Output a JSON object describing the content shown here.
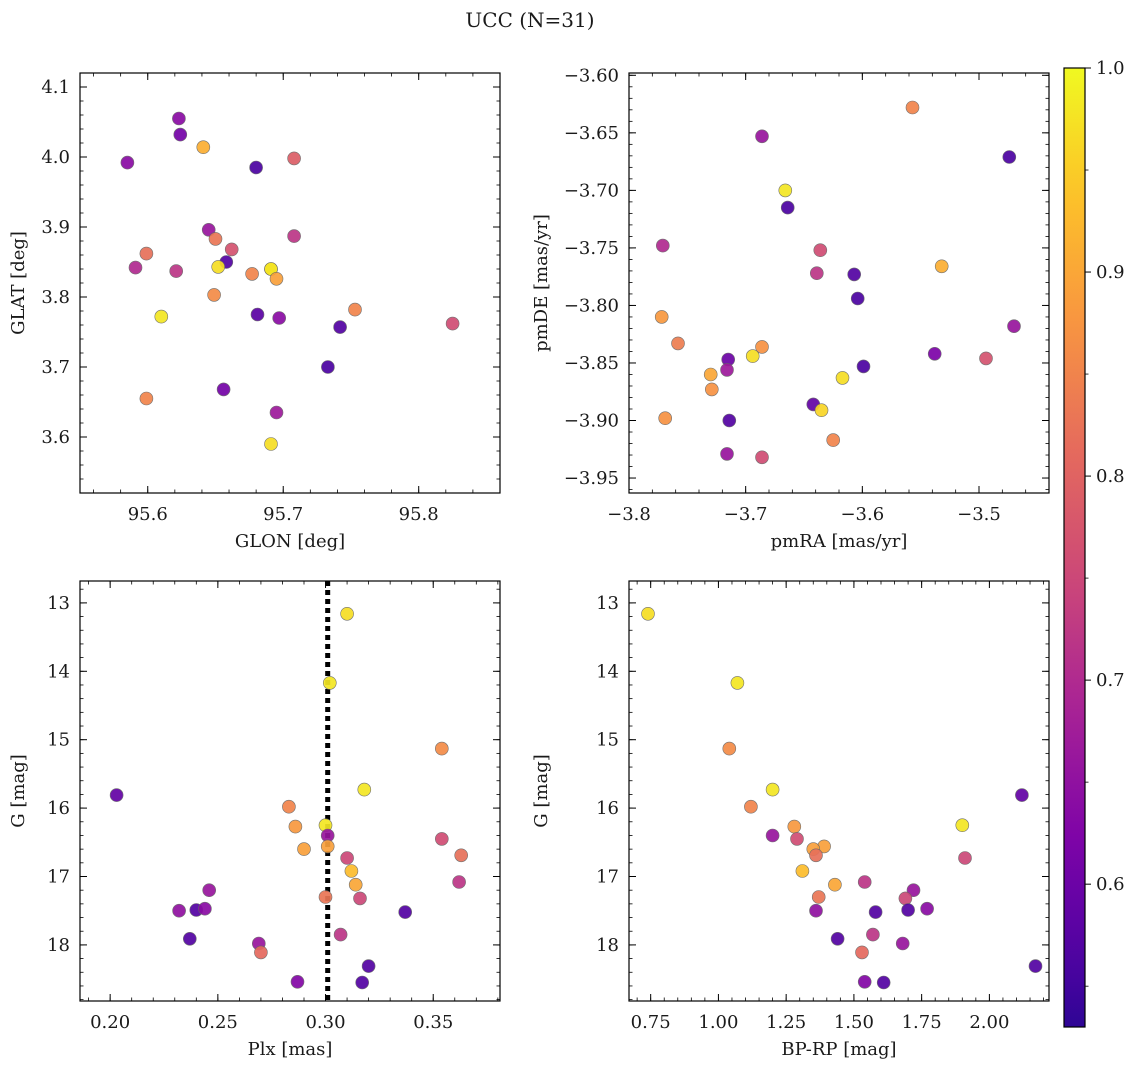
{
  "figure": {
    "title": "UCC (N=31)",
    "colormap": "plasma",
    "colorbar": {
      "min": 0.53,
      "max": 1.0,
      "ticks": [
        0.6,
        0.7,
        0.8,
        0.9,
        1.0
      ],
      "tick_labels": [
        "0.6",
        "0.7",
        "0.8",
        "0.9",
        "1.0"
      ]
    },
    "marker_edge_color": "#666666",
    "reference_line": {
      "panel": 2,
      "axis": "x",
      "value": 0.301,
      "style": "dotted",
      "color": "#000000"
    }
  },
  "chart_data": [
    {
      "type": "scatter",
      "title": "",
      "xlabel": "GLON [deg]",
      "ylabel": "GLAT [deg]",
      "xlim": [
        95.55,
        95.86
      ],
      "ylim": [
        3.52,
        4.12
      ],
      "y_inverted": false,
      "xticks": [
        95.6,
        95.7,
        95.8
      ],
      "xtick_labels": [
        "95.6",
        "95.7",
        "95.8"
      ],
      "yticks": [
        3.6,
        3.7,
        3.8,
        3.9,
        4.0,
        4.1
      ],
      "ytick_labels": [
        "3.6",
        "3.7",
        "3.8",
        "3.9",
        "4.0",
        "4.1"
      ],
      "x": [
        95.623,
        95.624,
        95.585,
        95.641,
        95.68,
        95.708,
        95.645,
        95.65,
        95.708,
        95.662,
        95.599,
        95.591,
        95.621,
        95.658,
        95.652,
        95.677,
        95.691,
        95.691,
        95.695,
        95.649,
        95.61,
        95.753,
        95.681,
        95.697,
        95.742,
        95.825,
        95.733,
        95.599,
        95.656,
        95.695,
        95.691
      ],
      "y": [
        4.055,
        4.032,
        3.992,
        4.014,
        3.985,
        3.998,
        3.896,
        3.883,
        3.887,
        3.868,
        3.862,
        3.842,
        3.837,
        3.85,
        3.843,
        3.833,
        3.84,
        3.84,
        3.826,
        3.803,
        3.772,
        3.782,
        3.775,
        3.77,
        3.757,
        3.762,
        3.7,
        3.655,
        3.668,
        3.635,
        3.59
      ],
      "c": [
        0.64,
        0.61,
        0.64,
        0.91,
        0.56,
        0.79,
        0.66,
        0.83,
        0.72,
        0.77,
        0.82,
        0.7,
        0.72,
        0.57,
        0.97,
        0.85,
        0.93,
        0.98,
        0.89,
        0.86,
        0.98,
        0.85,
        0.58,
        0.64,
        0.57,
        0.76,
        0.56,
        0.85,
        0.61,
        0.67,
        0.97
      ]
    },
    {
      "type": "scatter",
      "title": "",
      "xlabel": "pmRA [mas/yr]",
      "ylabel": "pmDE [mas/yr]",
      "xlim": [
        -3.8,
        -3.44
      ],
      "ylim": [
        -3.963,
        -3.598
      ],
      "y_inverted": false,
      "xticks": [
        -3.8,
        -3.7,
        -3.6,
        -3.5
      ],
      "xtick_labels": [
        "−3.8",
        "−3.7",
        "−3.6",
        "−3.5"
      ],
      "yticks": [
        -3.95,
        -3.9,
        -3.85,
        -3.8,
        -3.75,
        -3.7,
        -3.65,
        -3.6
      ],
      "ytick_labels": [
        "−3.95",
        "−3.90",
        "−3.85",
        "−3.80",
        "−3.75",
        "−3.70",
        "−3.65",
        "−3.60"
      ],
      "x": [
        -3.557,
        -3.686,
        -3.474,
        -3.666,
        -3.664,
        -3.771,
        -3.636,
        -3.639,
        -3.532,
        -3.607,
        -3.604,
        -3.47,
        -3.772,
        -3.758,
        -3.686,
        -3.715,
        -3.694,
        -3.538,
        -3.494,
        -3.599,
        -3.716,
        -3.73,
        -3.617,
        -3.729,
        -3.642,
        -3.635,
        -3.769,
        -3.714,
        -3.625,
        -3.716,
        -3.686
      ],
      "y": [
        -3.628,
        -3.653,
        -3.671,
        -3.7,
        -3.715,
        -3.748,
        -3.752,
        -3.772,
        -3.766,
        -3.773,
        -3.794,
        -3.818,
        -3.81,
        -3.833,
        -3.836,
        -3.847,
        -3.844,
        -3.842,
        -3.846,
        -3.853,
        -3.856,
        -3.86,
        -3.863,
        -3.873,
        -3.886,
        -3.891,
        -3.898,
        -3.9,
        -3.917,
        -3.929,
        -3.932
      ],
      "c": [
        0.85,
        0.66,
        0.56,
        0.98,
        0.56,
        0.7,
        0.76,
        0.72,
        0.91,
        0.57,
        0.56,
        0.66,
        0.88,
        0.84,
        0.87,
        0.6,
        0.97,
        0.62,
        0.77,
        0.56,
        0.67,
        0.9,
        0.97,
        0.87,
        0.59,
        0.96,
        0.87,
        0.57,
        0.85,
        0.66,
        0.76
      ]
    },
    {
      "type": "scatter",
      "title": "",
      "xlabel": "Plx [mas]",
      "ylabel": "G [mag]",
      "xlim": [
        0.186,
        0.381
      ],
      "ylim": [
        12.68,
        18.82
      ],
      "y_inverted": true,
      "xticks": [
        0.2,
        0.25,
        0.3,
        0.35
      ],
      "xtick_labels": [
        "0.20",
        "0.25",
        "0.30",
        "0.35"
      ],
      "yticks": [
        13,
        14,
        15,
        16,
        17,
        18
      ],
      "ytick_labels": [
        "13",
        "14",
        "15",
        "16",
        "17",
        "18"
      ],
      "x": [
        0.31,
        0.302,
        0.354,
        0.203,
        0.318,
        0.283,
        0.286,
        0.3,
        0.301,
        0.354,
        0.301,
        0.29,
        0.363,
        0.31,
        0.312,
        0.362,
        0.314,
        0.246,
        0.3,
        0.316,
        0.232,
        0.24,
        0.244,
        0.337,
        0.307,
        0.237,
        0.269,
        0.27,
        0.32,
        0.287,
        0.317
      ],
      "y": [
        13.16,
        14.17,
        15.13,
        15.81,
        15.73,
        15.98,
        16.27,
        16.25,
        16.4,
        16.45,
        16.56,
        16.6,
        16.69,
        16.73,
        16.92,
        17.08,
        17.12,
        17.2,
        17.3,
        17.32,
        17.5,
        17.49,
        17.47,
        17.52,
        17.85,
        17.91,
        17.98,
        18.11,
        18.31,
        18.54,
        18.55
      ],
      "c": [
        0.97,
        0.98,
        0.86,
        0.59,
        0.98,
        0.85,
        0.88,
        0.98,
        0.66,
        0.76,
        0.89,
        0.89,
        0.82,
        0.75,
        0.93,
        0.72,
        0.9,
        0.66,
        0.83,
        0.75,
        0.65,
        0.57,
        0.64,
        0.57,
        0.72,
        0.57,
        0.66,
        0.81,
        0.57,
        0.63,
        0.57
      ]
    },
    {
      "type": "scatter",
      "title": "",
      "xlabel": "BP-RP [mag]",
      "ylabel": "G [mag]",
      "xlim": [
        0.67,
        2.22
      ],
      "ylim": [
        12.68,
        18.82
      ],
      "y_inverted": true,
      "xticks": [
        0.75,
        1.0,
        1.25,
        1.5,
        1.75,
        2.0
      ],
      "xtick_labels": [
        "0.75",
        "1.00",
        "1.25",
        "1.50",
        "1.75",
        "2.00"
      ],
      "yticks": [
        13,
        14,
        15,
        16,
        17,
        18
      ],
      "ytick_labels": [
        "13",
        "14",
        "15",
        "16",
        "17",
        "18"
      ],
      "x": [
        0.74,
        1.07,
        1.04,
        2.12,
        1.2,
        1.12,
        1.28,
        1.9,
        1.2,
        1.29,
        1.39,
        1.35,
        1.36,
        1.91,
        1.31,
        1.54,
        1.43,
        1.72,
        1.37,
        1.69,
        1.36,
        1.7,
        1.77,
        1.58,
        1.57,
        1.44,
        1.68,
        1.53,
        2.17,
        1.54,
        1.61
      ],
      "y": [
        13.16,
        14.17,
        15.13,
        15.81,
        15.73,
        15.98,
        16.27,
        16.25,
        16.4,
        16.45,
        16.56,
        16.6,
        16.69,
        16.73,
        16.92,
        17.08,
        17.12,
        17.2,
        17.3,
        17.32,
        17.5,
        17.49,
        17.47,
        17.52,
        17.85,
        17.91,
        17.98,
        18.11,
        18.31,
        18.54,
        18.55
      ],
      "c": [
        0.97,
        0.98,
        0.86,
        0.59,
        0.98,
        0.85,
        0.88,
        0.98,
        0.66,
        0.76,
        0.89,
        0.89,
        0.82,
        0.75,
        0.93,
        0.72,
        0.9,
        0.66,
        0.83,
        0.75,
        0.65,
        0.57,
        0.64,
        0.57,
        0.72,
        0.57,
        0.66,
        0.81,
        0.57,
        0.63,
        0.57
      ]
    }
  ]
}
